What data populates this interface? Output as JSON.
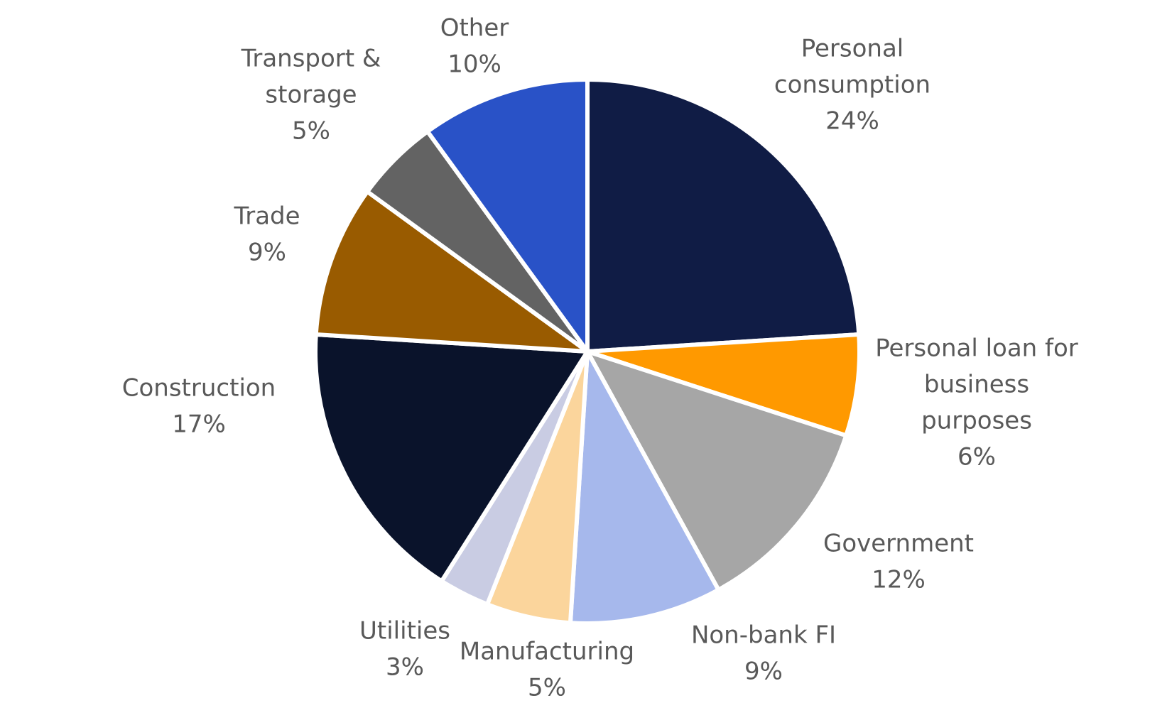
{
  "chart_data": {
    "type": "pie",
    "title": "",
    "start_angle_deg": 0,
    "direction": "clockwise",
    "slices": [
      {
        "label_lines": [
          "Personal",
          "consumption"
        ],
        "value": 24,
        "value_label": "24%",
        "color": "#101C45"
      },
      {
        "label_lines": [
          "Personal loan for",
          "business",
          "purposes"
        ],
        "value": 6,
        "value_label": "6%",
        "color": "#FF9900"
      },
      {
        "label_lines": [
          "Government"
        ],
        "value": 12,
        "value_label": "12%",
        "color": "#A6A6A6"
      },
      {
        "label_lines": [
          "Non-bank FI"
        ],
        "value": 9,
        "value_label": "9%",
        "color": "#A6B8EC"
      },
      {
        "label_lines": [
          "Manufacturing"
        ],
        "value": 5,
        "value_label": "5%",
        "color": "#FBD59C"
      },
      {
        "label_lines": [
          "Utilities"
        ],
        "value": 3,
        "value_label": "3%",
        "color": "#C9CCE3"
      },
      {
        "label_lines": [
          "Construction"
        ],
        "value": 17,
        "value_label": "17%",
        "color": "#0A132B"
      },
      {
        "label_lines": [
          "Trade"
        ],
        "value": 9,
        "value_label": "9%",
        "color": "#995B00"
      },
      {
        "label_lines": [
          "Transport &",
          "storage"
        ],
        "value": 5,
        "value_label": "5%",
        "color": "#636363"
      },
      {
        "label_lines": [
          "Other"
        ],
        "value": 10,
        "value_label": "10%",
        "color": "#2952C7"
      }
    ]
  }
}
